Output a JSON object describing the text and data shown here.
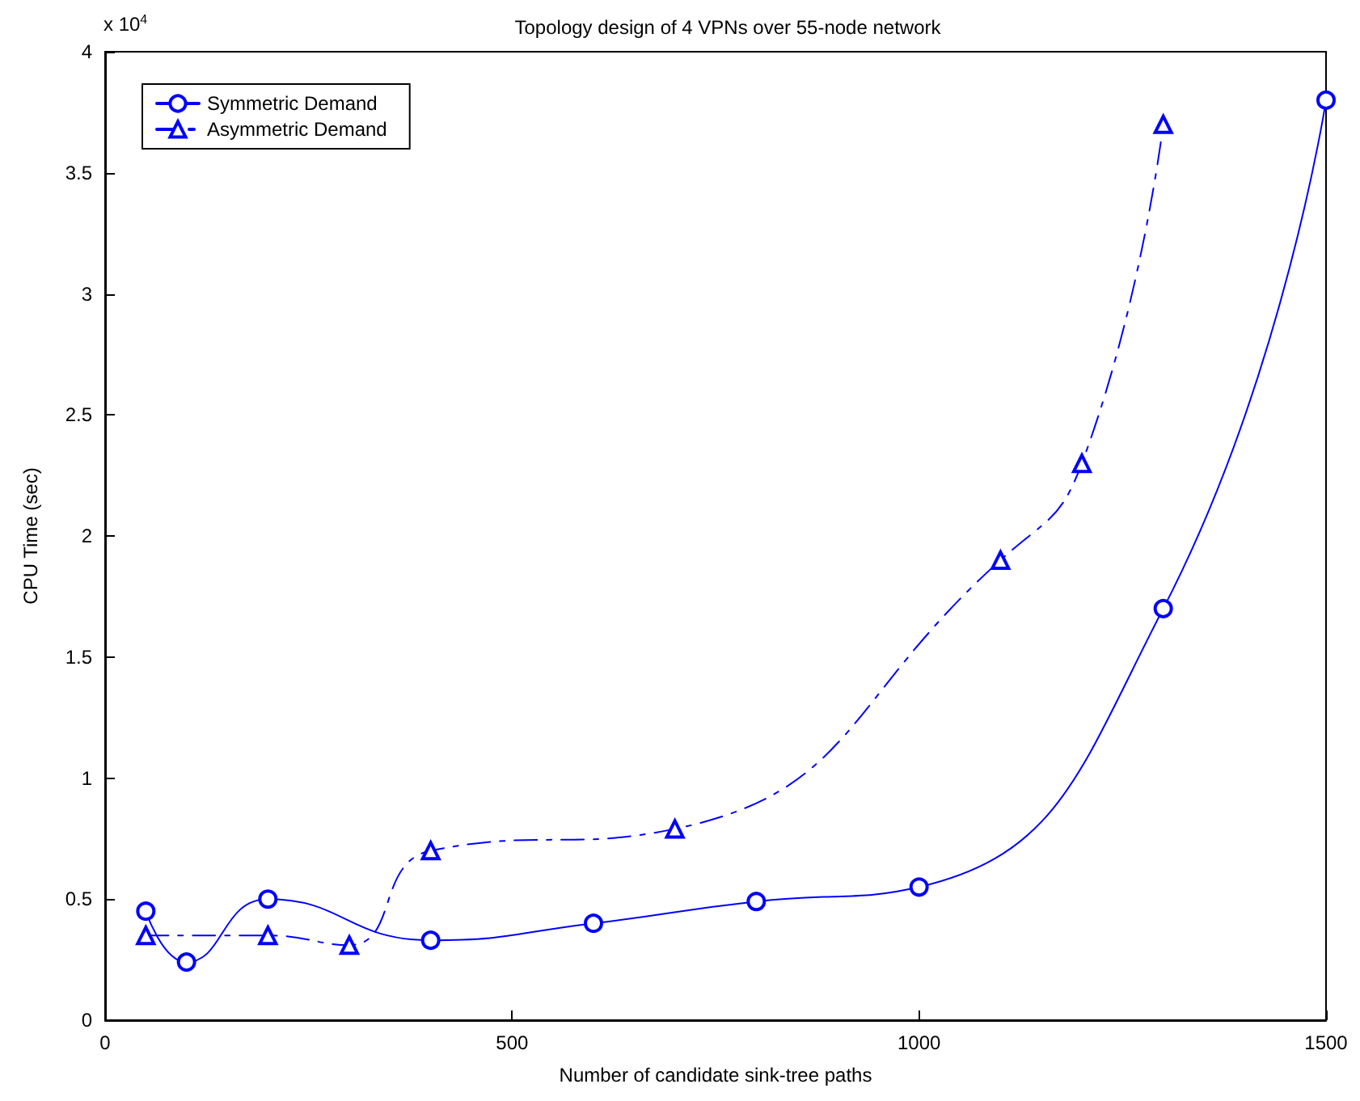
{
  "chart_data": {
    "type": "line",
    "title": "Topology design of 4 VPNs over 55-node network",
    "xlabel": "Number of candidate sink-tree paths",
    "ylabel": "CPU Time (sec)",
    "annotations": [
      "x 10$^{4}$"
    ],
    "series": [
      {
        "name": "Symmetric Demand",
        "color": "#0000ff",
        "marker": "circle",
        "line_style": "solid",
        "x": [
          50,
          100,
          200,
          400,
          600,
          800,
          1000,
          1300,
          1500
        ],
        "values": [
          0.45,
          0.24,
          0.5,
          0.33,
          0.4,
          0.49,
          0.55,
          1.7,
          3.8
        ]
      },
      {
        "name": "Asymmetric Demand",
        "color": "#0000ff",
        "marker": "triangle",
        "line_style": "dashed",
        "x": [
          50,
          200,
          300,
          400,
          700,
          1100,
          1200,
          1300
        ],
        "values": [
          0.35,
          0.35,
          0.31,
          0.7,
          0.79,
          1.9,
          2.3,
          3.7
        ]
      }
    ],
    "xlim": [
      0,
      1500
    ],
    "xticks": [
      0,
      500,
      1000,
      1500
    ],
    "ylim": [
      0,
      4
    ],
    "yticks": [
      0,
      0.5,
      1,
      1.5,
      2,
      2.5,
      3,
      3.5,
      4
    ],
    "grid": false,
    "legend": "top left"
  }
}
